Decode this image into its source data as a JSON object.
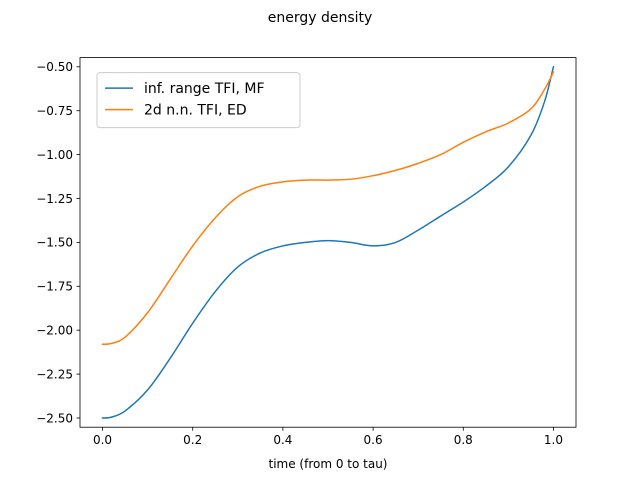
{
  "chart_data": {
    "type": "line",
    "title": "energy density",
    "xlabel": "time (from 0 to tau)",
    "ylabel": "",
    "xlim": [
      -0.05,
      1.05
    ],
    "ylim": [
      -2.5525,
      -0.4475
    ],
    "xticks": [
      0.0,
      0.2,
      0.4,
      0.6,
      0.8,
      1.0
    ],
    "xtick_labels": [
      "0.0",
      "0.2",
      "0.4",
      "0.6",
      "0.8",
      "1.0"
    ],
    "yticks": [
      -2.5,
      -2.25,
      -2.0,
      -1.75,
      -1.5,
      -1.25,
      -1.0,
      -0.75,
      -0.5
    ],
    "ytick_labels": [
      "−2.50",
      "−2.25",
      "−2.00",
      "−1.75",
      "−1.50",
      "−1.25",
      "−1.00",
      "−0.75",
      "−0.50"
    ],
    "grid": false,
    "legend_position": "top-left",
    "series": [
      {
        "name": "inf. range TFI, MF",
        "color": "#1f77b4",
        "x": [
          0.0,
          0.02,
          0.05,
          0.1,
          0.15,
          0.2,
          0.25,
          0.3,
          0.35,
          0.4,
          0.45,
          0.5,
          0.55,
          0.6,
          0.65,
          0.7,
          0.75,
          0.8,
          0.85,
          0.9,
          0.95,
          0.98,
          1.0
        ],
        "y": [
          -2.5,
          -2.495,
          -2.46,
          -2.34,
          -2.16,
          -1.96,
          -1.78,
          -1.64,
          -1.56,
          -1.52,
          -1.5,
          -1.49,
          -1.5,
          -1.52,
          -1.5,
          -1.43,
          -1.35,
          -1.27,
          -1.18,
          -1.07,
          -0.89,
          -0.7,
          -0.5
        ]
      },
      {
        "name": "2d n.n. TFI, ED",
        "color": "#ff7f0e",
        "x": [
          0.0,
          0.02,
          0.05,
          0.1,
          0.15,
          0.2,
          0.25,
          0.3,
          0.35,
          0.4,
          0.45,
          0.5,
          0.55,
          0.6,
          0.65,
          0.7,
          0.75,
          0.8,
          0.85,
          0.9,
          0.95,
          0.98,
          1.0
        ],
        "y": [
          -2.08,
          -2.075,
          -2.04,
          -1.9,
          -1.71,
          -1.52,
          -1.36,
          -1.24,
          -1.18,
          -1.155,
          -1.145,
          -1.145,
          -1.14,
          -1.12,
          -1.09,
          -1.05,
          -1.0,
          -0.93,
          -0.87,
          -0.82,
          -0.74,
          -0.63,
          -0.53
        ]
      }
    ]
  }
}
